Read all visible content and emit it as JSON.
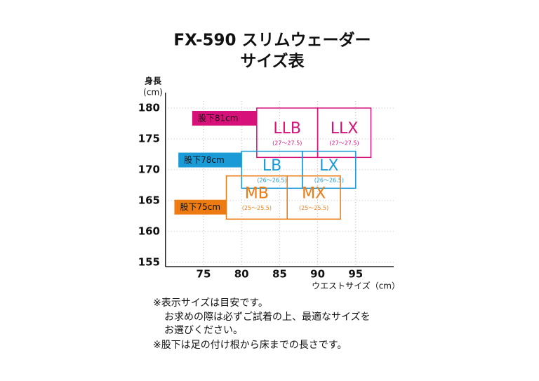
{
  "chart_data": {
    "type": "size-range",
    "title": "FX-590 スリムウェーダー",
    "subtitle": "サイズ表",
    "y_label": "身長",
    "y_unit": "(cm)",
    "x_label": "ウエストサイズ（cm）",
    "xlim": [
      70,
      100
    ],
    "xticks": [
      75,
      80,
      85,
      90,
      95
    ],
    "ylim": [
      154.3,
      182.5
    ],
    "yticks": [
      155,
      160,
      165,
      170,
      175,
      180
    ],
    "grid": true,
    "groups": [
      {
        "name": "股下81cm",
        "color": "#d6127a",
        "sizes": [
          {
            "name": "LLB",
            "range": "(27～27.5)",
            "x": [
              82,
              90
            ],
            "y": [
              172,
              180
            ]
          },
          {
            "name": "LLX",
            "range": "(27～27.5)",
            "x": [
              90,
              97
            ],
            "y": [
              172,
              180
            ]
          }
        ]
      },
      {
        "name": "股下78cm",
        "color": "#1a9ad6",
        "sizes": [
          {
            "name": "LB",
            "range": "(26～26.5)",
            "x": [
              80,
              88
            ],
            "y": [
              167,
              173
            ]
          },
          {
            "name": "LX",
            "range": "(26～26.5)",
            "x": [
              88,
              95
            ],
            "y": [
              167,
              173
            ]
          }
        ]
      },
      {
        "name": "股下75cm",
        "color": "#ee7a12",
        "sizes": [
          {
            "name": "MB",
            "range": "(25～25.5)",
            "x": [
              78,
              86
            ],
            "y": [
              162,
              169
            ]
          },
          {
            "name": "MX",
            "range": "(25～25.5)",
            "x": [
              86,
              93
            ],
            "y": [
              162,
              169
            ]
          }
        ]
      }
    ],
    "notes": [
      "※表示サイズは目安です。",
      "お求めの際は必ずご試着の上、最適なサイズを",
      "お選びください。",
      "※股下は足の付け根から床までの長さです。"
    ]
  }
}
